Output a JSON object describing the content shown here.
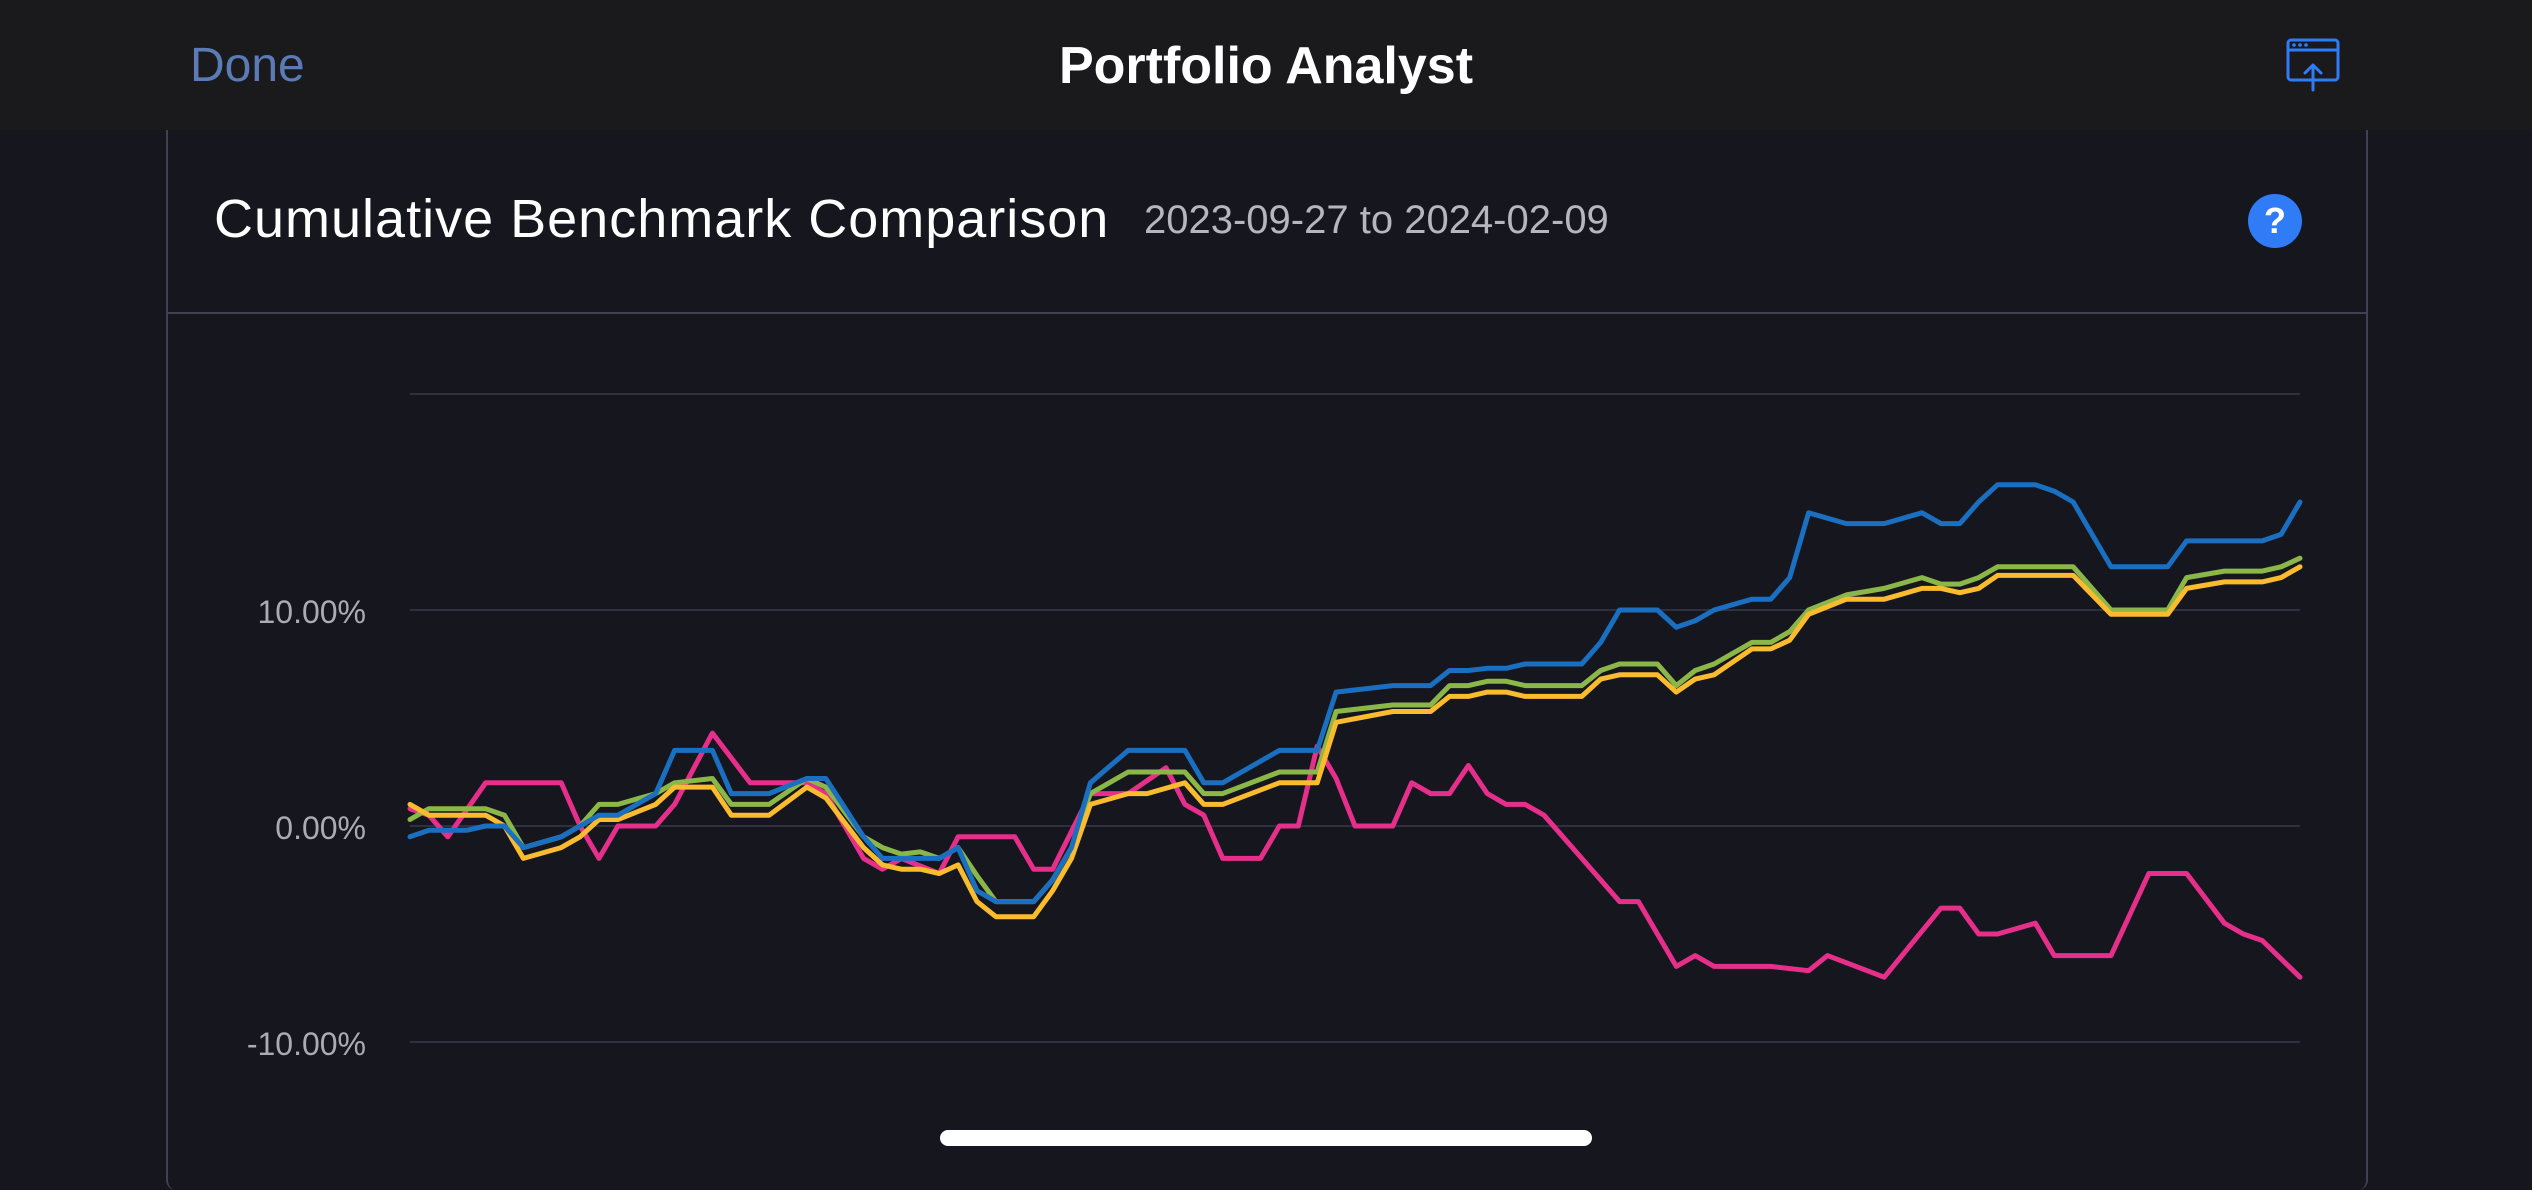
{
  "nav": {
    "done_label": "Done",
    "title": "Portfolio Analyst",
    "share_icon": "share-window-icon"
  },
  "card": {
    "title": "Cumulative Benchmark Comparison",
    "date_range": "2023-09-27 to 2024-02-09",
    "help_label": "?"
  },
  "colors": {
    "background": "#16161e",
    "navbar": "#1a1a1c",
    "accent": "#2f7cf6",
    "done": "#5a7bb5",
    "grid": "#2e3040",
    "tick_text": "#a9abb5"
  },
  "chart_data": {
    "type": "line",
    "x_range": [
      "2023-09-27",
      "2024-02-09"
    ],
    "ylim": [
      -13,
      20
    ],
    "y_ticks": [
      {
        "value": 10,
        "label": "10.00%"
      },
      {
        "value": 0,
        "label": "0.00%"
      },
      {
        "value": -10,
        "label": "-10.00%"
      }
    ],
    "grid": true,
    "series": [
      {
        "color": "#e62f8b",
        "x": [
          0,
          1,
          2,
          4,
          5,
          8,
          9,
          10,
          11,
          13,
          14,
          16,
          18,
          21,
          22,
          23,
          24,
          25,
          26,
          28,
          29,
          32,
          33,
          34,
          36,
          38,
          40,
          41,
          42,
          43,
          45,
          46,
          47,
          48,
          49,
          50,
          52,
          53,
          54,
          55,
          56,
          57,
          58,
          59,
          60,
          62,
          64,
          65,
          67,
          68,
          69,
          72,
          74,
          75,
          78,
          81,
          82,
          83,
          84,
          86,
          87,
          88,
          90,
          92,
          93,
          94,
          96,
          97,
          98,
          100
        ],
        "y": [
          0.8,
          0.5,
          -0.5,
          2,
          2,
          2,
          0,
          -1.5,
          0,
          0,
          1,
          4.3,
          2,
          2,
          1.5,
          0,
          -1.5,
          -2,
          -1.5,
          -2.2,
          -0.5,
          -0.5,
          -2,
          -2,
          1.5,
          1.5,
          2.7,
          1,
          0.5,
          -1.5,
          -1.5,
          0,
          0,
          3.7,
          2.2,
          0,
          0,
          2,
          1.5,
          1.5,
          2.8,
          1.5,
          1,
          1,
          0.5,
          -1.5,
          -3.5,
          -3.5,
          -6.5,
          -6,
          -6.5,
          -6.5,
          -6.7,
          -6,
          -7,
          -3.8,
          -3.8,
          -5,
          -5,
          -4.5,
          -6,
          -6,
          -6,
          -2.2,
          -2.2,
          -2.2,
          -4.5,
          -5,
          -5.3,
          -7
        ]
      },
      {
        "color": "#8bb748",
        "x": [
          0,
          1,
          3,
          4,
          5,
          6,
          8,
          9,
          10,
          11,
          13,
          14,
          16,
          17,
          18,
          19,
          21,
          22,
          24,
          25,
          26,
          27,
          28,
          29,
          30,
          31,
          33,
          34,
          35,
          36,
          38,
          39,
          41,
          42,
          43,
          46,
          47,
          48,
          49,
          52,
          53,
          54,
          55,
          56,
          57,
          58,
          59,
          60,
          62,
          63,
          64,
          65,
          66,
          67,
          68,
          69,
          71,
          72,
          73,
          74,
          76,
          78,
          80,
          81,
          82,
          83,
          84,
          86,
          87,
          88,
          90,
          92,
          93,
          94,
          96,
          97,
          98,
          99,
          100
        ],
        "y": [
          0.3,
          0.8,
          0.8,
          0.8,
          0.5,
          -1,
          -0.5,
          0,
          1,
          1,
          1.5,
          2,
          2.2,
          1,
          1,
          1,
          2.2,
          1.8,
          -0.5,
          -1,
          -1.3,
          -1.2,
          -1.5,
          -1,
          -2.3,
          -3.5,
          -3.5,
          -2.5,
          -1,
          1.5,
          2.5,
          2.5,
          2.5,
          1.5,
          1.5,
          2.5,
          2.5,
          2.5,
          5.3,
          5.6,
          5.6,
          5.6,
          6.5,
          6.5,
          6.7,
          6.7,
          6.5,
          6.5,
          6.5,
          7.2,
          7.5,
          7.5,
          7.5,
          6.5,
          7.2,
          7.5,
          8.5,
          8.5,
          9,
          10,
          10.7,
          11,
          11.5,
          11.2,
          11.2,
          11.5,
          12,
          12,
          12,
          12,
          10,
          10,
          10,
          11.5,
          11.8,
          11.8,
          11.8,
          12,
          12.4
        ]
      },
      {
        "color": "#fbbb2e",
        "x": [
          0,
          1,
          3,
          4,
          5,
          6,
          8,
          9,
          10,
          11,
          13,
          14,
          16,
          17,
          18,
          19,
          21,
          22,
          24,
          25,
          26,
          27,
          28,
          29,
          30,
          31,
          33,
          34,
          35,
          36,
          38,
          39,
          41,
          42,
          43,
          46,
          47,
          48,
          49,
          52,
          53,
          54,
          55,
          56,
          57,
          58,
          59,
          60,
          62,
          63,
          64,
          65,
          66,
          67,
          68,
          69,
          71,
          72,
          73,
          74,
          76,
          78,
          80,
          81,
          82,
          83,
          84,
          86,
          87,
          88,
          90,
          92,
          93,
          94,
          96,
          97,
          98,
          99,
          100
        ],
        "y": [
          1,
          0.5,
          0.5,
          0.5,
          0,
          -1.5,
          -1,
          -0.5,
          0.3,
          0.3,
          1,
          1.8,
          1.8,
          0.5,
          0.5,
          0.5,
          1.8,
          1.3,
          -1,
          -1.8,
          -2,
          -2,
          -2.2,
          -1.8,
          -3.5,
          -4.2,
          -4.2,
          -3,
          -1.5,
          1,
          1.5,
          1.5,
          2,
          1,
          1,
          2,
          2,
          2,
          4.8,
          5.3,
          5.3,
          5.3,
          6,
          6,
          6.2,
          6.2,
          6,
          6,
          6,
          6.8,
          7,
          7,
          7,
          6.2,
          6.8,
          7,
          8.2,
          8.2,
          8.6,
          9.8,
          10.5,
          10.5,
          11,
          11,
          10.8,
          11,
          11.6,
          11.6,
          11.6,
          11.6,
          9.8,
          9.8,
          9.8,
          11,
          11.3,
          11.3,
          11.3,
          11.5,
          12
        ]
      },
      {
        "color": "#1a6fc0",
        "x": [
          0,
          1,
          3,
          4,
          5,
          6,
          8,
          9,
          10,
          11,
          13,
          14,
          16,
          17,
          18,
          19,
          21,
          22,
          24,
          25,
          26,
          27,
          28,
          29,
          30,
          31,
          33,
          34,
          35,
          36,
          38,
          39,
          41,
          42,
          43,
          46,
          47,
          48,
          49,
          52,
          53,
          54,
          55,
          56,
          57,
          58,
          59,
          60,
          62,
          63,
          64,
          65,
          66,
          67,
          68,
          69,
          71,
          72,
          73,
          74,
          76,
          78,
          80,
          81,
          82,
          83,
          84,
          86,
          87,
          88,
          90,
          92,
          93,
          94,
          96,
          97,
          98,
          99,
          100
        ],
        "y": [
          -0.5,
          -0.2,
          -0.2,
          0,
          0,
          -1,
          -0.5,
          0,
          0.5,
          0.5,
          1.5,
          3.5,
          3.5,
          1.5,
          1.5,
          1.5,
          2.2,
          2.2,
          -0.5,
          -1.5,
          -1.5,
          -1.5,
          -1.5,
          -1,
          -3,
          -3.5,
          -3.5,
          -2.5,
          -1,
          2,
          3.5,
          3.5,
          3.5,
          2,
          2,
          3.5,
          3.5,
          3.5,
          6.2,
          6.5,
          6.5,
          6.5,
          7.2,
          7.2,
          7.3,
          7.3,
          7.5,
          7.5,
          7.5,
          8.5,
          10,
          10,
          10,
          9.2,
          9.5,
          10,
          10.5,
          10.5,
          11.5,
          14.5,
          14,
          14,
          14.5,
          14,
          14,
          15,
          15.8,
          15.8,
          15.5,
          15,
          12,
          12,
          12,
          13.2,
          13.2,
          13.2,
          13.2,
          13.5,
          15
        ]
      }
    ]
  }
}
